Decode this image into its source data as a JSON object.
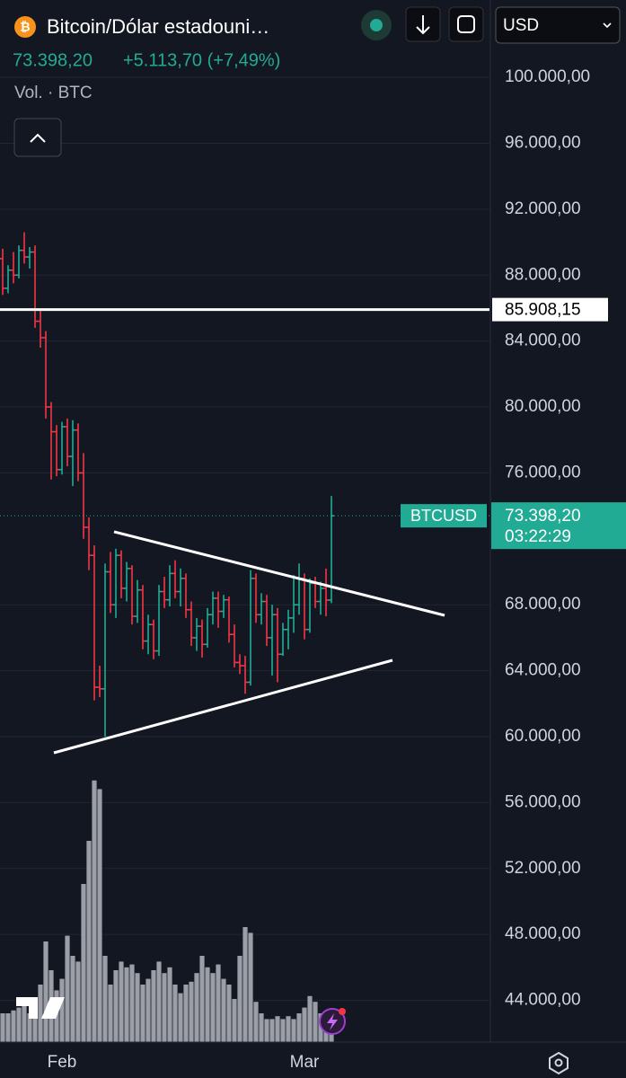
{
  "chart_data": {
    "type": "ohlc",
    "title": "Bitcoin/Dólar estadouni…",
    "change_label": "+5.113,70 (+7,49%)",
    "volume_label": "Vol. · BTC",
    "currency": "USD",
    "symbol": "BTCUSD",
    "countdown": "03:22:29",
    "last_price": {
      "value": 73398.2,
      "label": "73.398,20"
    },
    "categories": [
      null,
      null,
      null,
      null,
      null,
      null,
      null,
      null,
      null,
      null,
      null,
      "Feb",
      null,
      null,
      null,
      null,
      null,
      null,
      null,
      null,
      null,
      null,
      null,
      null,
      null,
      null,
      null,
      null,
      null,
      null,
      null,
      null,
      null,
      null,
      null,
      null,
      null,
      null,
      null,
      null,
      null,
      null,
      null,
      null,
      null,
      null,
      null,
      null,
      null,
      null,
      null,
      null,
      null,
      null,
      null,
      null,
      "Mar",
      null,
      null,
      null,
      null,
      null
    ],
    "open": [
      89000,
      87200,
      88300,
      88000,
      89500,
      89100,
      89400,
      85200,
      84200,
      80000,
      78500,
      76200,
      78800,
      77000,
      78600,
      76000,
      72700,
      71000,
      63000,
      62900,
      70000,
      68000,
      71000,
      69000,
      70200,
      67300,
      68900,
      65800,
      66800,
      65200,
      68800,
      68300,
      69900,
      68800,
      69600,
      67700,
      66000,
      66700,
      65600,
      67400,
      68400,
      67600,
      68300,
      66200,
      64500,
      64300,
      63300,
      69600,
      67400,
      68200,
      66000,
      67400,
      65000,
      66500,
      67200,
      68000,
      69600,
      66500,
      69300,
      68200,
      69000,
      68284.5
    ],
    "high": [
      89600,
      88600,
      89400,
      89800,
      90600,
      89700,
      89800,
      85900,
      84600,
      80300,
      78900,
      79100,
      79300,
      79200,
      79000,
      77200,
      73300,
      71600,
      64300,
      70500,
      71200,
      71400,
      71300,
      70600,
      70400,
      69500,
      69200,
      67400,
      67100,
      69200,
      69700,
      70400,
      70700,
      70200,
      69900,
      68200,
      67200,
      67100,
      67800,
      68800,
      68800,
      68600,
      68500,
      66800,
      65000,
      64900,
      70100,
      69900,
      68700,
      68600,
      68000,
      67800,
      66900,
      67700,
      69800,
      70500,
      69900,
      69600,
      69700,
      69400,
      70200,
      74600
    ],
    "low": [
      86800,
      86900,
      87500,
      87800,
      88700,
      88400,
      84800,
      83600,
      79300,
      75600,
      75800,
      75900,
      76400,
      75200,
      75500,
      72000,
      70100,
      62200,
      62400,
      60000,
      67500,
      67200,
      68400,
      68200,
      66800,
      66900,
      65300,
      65000,
      64700,
      64900,
      67800,
      67900,
      68400,
      67900,
      67200,
      65500,
      65200,
      64800,
      65400,
      66800,
      66600,
      67200,
      65700,
      64200,
      63800,
      62600,
      63100,
      66900,
      66800,
      65500,
      63700,
      63300,
      64900,
      65300,
      66300,
      67400,
      65900,
      66300,
      67800,
      67400,
      67300,
      68100
    ],
    "close": [
      87200,
      88300,
      88000,
      89500,
      89100,
      89400,
      85200,
      84200,
      80000,
      78500,
      76200,
      78800,
      77000,
      78600,
      76000,
      72700,
      71000,
      63000,
      62900,
      70000,
      68000,
      71000,
      69000,
      70200,
      67300,
      68900,
      65800,
      66800,
      65200,
      68800,
      68300,
      69900,
      68800,
      69600,
      67700,
      66000,
      66700,
      65600,
      67400,
      68400,
      67600,
      68300,
      66200,
      64500,
      64300,
      63300,
      69600,
      67400,
      68200,
      66000,
      67400,
      65000,
      66500,
      67200,
      68000,
      69600,
      66500,
      69300,
      68200,
      69000,
      68284.5,
      73398.2
    ],
    "volume": [
      10,
      10,
      11,
      12,
      13,
      10,
      14,
      20,
      35,
      25,
      18,
      22,
      37,
      30,
      28,
      55,
      70,
      91,
      88,
      30,
      20,
      25,
      28,
      26,
      27,
      24,
      20,
      22,
      25,
      28,
      24,
      26,
      20,
      17,
      20,
      21,
      24,
      30,
      26,
      24,
      27,
      22,
      20,
      15,
      30,
      40,
      38,
      14,
      10,
      8,
      8,
      9,
      8,
      9,
      8,
      10,
      12,
      16,
      14,
      10,
      8,
      4
    ],
    "vlim": [
      0,
      100
    ],
    "colors": {
      "up": "#22ab94",
      "down": "#f23645",
      "volume": "#9b9ea6"
    },
    "ylim": [
      41470,
      104690
    ],
    "yticks": [
      {
        "value": 100000,
        "label": "100.000,00"
      },
      {
        "value": 96000,
        "label": "96.000,00"
      },
      {
        "value": 92000,
        "label": "92.000,00"
      },
      {
        "value": 88000,
        "label": "88.000,00"
      },
      {
        "value": 84000,
        "label": "84.000,00"
      },
      {
        "value": 80000,
        "label": "80.000,00"
      },
      {
        "value": 76000,
        "label": "76.000,00"
      },
      {
        "value": 68000,
        "label": "68.000,00"
      },
      {
        "value": 64000,
        "label": "64.000,00"
      },
      {
        "value": 60000,
        "label": "60.000,00"
      },
      {
        "value": 56000,
        "label": "56.000,00"
      },
      {
        "value": 52000,
        "label": "52.000,00"
      },
      {
        "value": 48000,
        "label": "48.000,00"
      },
      {
        "value": 44000,
        "label": "44.000,00"
      }
    ],
    "grid": true,
    "horizontal_line": {
      "value": 85908.15,
      "label": "85.908,15"
    }
  }
}
